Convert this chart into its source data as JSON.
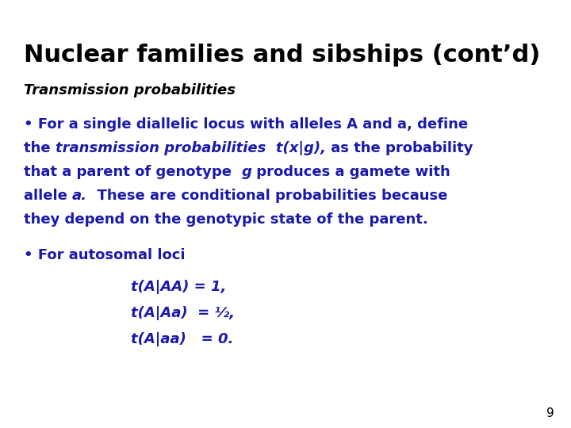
{
  "title": "Nuclear families and sibships (cont’d)",
  "title_color": "#000000",
  "title_fontsize": 22,
  "subtitle": "Transmission probabilities",
  "subtitle_color": "#000000",
  "subtitle_fontsize": 13,
  "body_color": "#1a1aaa",
  "body_fontsize": 13,
  "bg_color": "#ffffff",
  "page_number": "9"
}
